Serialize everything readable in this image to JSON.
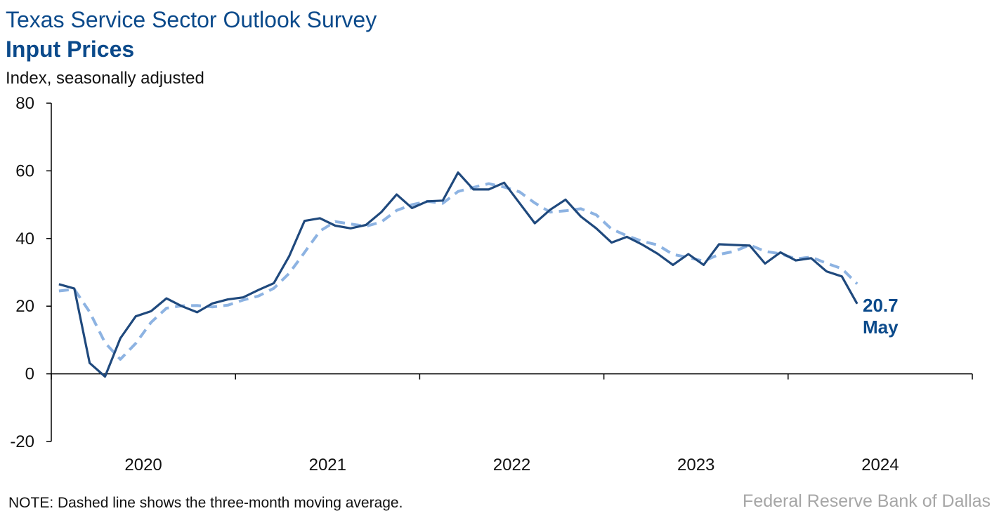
{
  "header": {
    "title": "Texas Service Sector Outlook Survey",
    "subtitle": "Input Prices",
    "y_axis_label": "Index, seasonally adjusted"
  },
  "footer": {
    "note": "NOTE: Dashed line shows the three-month moving average.",
    "source": "Federal Reserve Bank of Dallas"
  },
  "colors": {
    "series_main": "#1f497d",
    "series_average": "#8db3e2",
    "title": "#0b4a8b"
  },
  "chart_data": {
    "type": "line",
    "title": "Input Prices",
    "ylabel": "Index, seasonally adjusted",
    "xlabel": "",
    "ylim": [
      -20,
      80
    ],
    "yticks": [
      -20,
      0,
      20,
      40,
      60,
      80
    ],
    "x_tick_labels": [
      "2020",
      "2021",
      "2022",
      "2023",
      "2024"
    ],
    "x_range": [
      "2020-01",
      "2024-12"
    ],
    "x": [
      "2020-01",
      "2020-02",
      "2020-03",
      "2020-04",
      "2020-05",
      "2020-06",
      "2020-07",
      "2020-08",
      "2020-09",
      "2020-10",
      "2020-11",
      "2020-12",
      "2021-01",
      "2021-02",
      "2021-03",
      "2021-04",
      "2021-05",
      "2021-06",
      "2021-07",
      "2021-08",
      "2021-09",
      "2021-10",
      "2021-11",
      "2021-12",
      "2022-01",
      "2022-02",
      "2022-03",
      "2022-04",
      "2022-05",
      "2022-06",
      "2022-07",
      "2022-08",
      "2022-09",
      "2022-10",
      "2022-11",
      "2022-12",
      "2023-01",
      "2023-02",
      "2023-03",
      "2023-04",
      "2023-05",
      "2023-06",
      "2023-07",
      "2023-08",
      "2023-09",
      "2023-10",
      "2023-11",
      "2023-12",
      "2024-01",
      "2024-02",
      "2024-03",
      "2024-04",
      "2024-05"
    ],
    "series": [
      {
        "values": [
          26.5,
          25.2,
          3.2,
          -0.8,
          10.5,
          17.0,
          18.5,
          22.3,
          20.0,
          18.2,
          20.8,
          22.0,
          22.6,
          24.8,
          26.8,
          34.8,
          45.2,
          46.0,
          43.8,
          43.0,
          44.0,
          47.8,
          53.0,
          49.0,
          51.0,
          51.2,
          59.5,
          54.5,
          54.5,
          56.5,
          50.5,
          44.5,
          48.5,
          51.5,
          46.5,
          43.0,
          38.8,
          40.5,
          38.2,
          35.5,
          32.2,
          35.4,
          32.2,
          38.3,
          38.1,
          37.9,
          32.6,
          35.9,
          33.5,
          34.2,
          30.3,
          28.8,
          20.7
        ]
      },
      {
        "values": [
          24.5,
          25.0,
          18.3,
          9.2,
          4.3,
          9.0,
          15.2,
          19.4,
          20.1,
          20.2,
          19.8,
          20.3,
          21.8,
          23.0,
          25.3,
          29.7,
          35.9,
          42.2,
          45.0,
          44.3,
          43.6,
          44.9,
          48.3,
          50.0,
          51.0,
          50.4,
          53.9,
          55.1,
          56.2,
          55.2,
          53.8,
          50.5,
          47.8,
          48.2,
          48.8,
          47.0,
          42.8,
          40.8,
          39.2,
          38.1,
          35.3,
          34.4,
          33.3,
          35.3,
          36.2,
          38.1,
          36.2,
          35.5,
          34.0,
          34.5,
          32.7,
          31.1,
          26.6
        ]
      }
    ],
    "annotation": {
      "value_label": "20.7",
      "month_label": "May"
    },
    "grid": false,
    "legend": "none"
  }
}
